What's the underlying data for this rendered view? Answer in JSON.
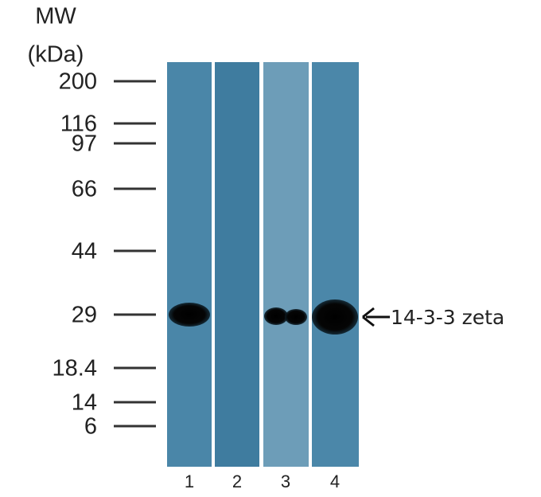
{
  "mw_title": [
    "MW",
    "(kDa)"
  ],
  "markers": [
    "200",
    "116",
    "97",
    "66",
    "44",
    "29",
    "18.4",
    "14",
    "6"
  ],
  "lanes": [
    "1",
    "2",
    "3",
    "4"
  ],
  "annotation": "14-3-3 zeta"
}
